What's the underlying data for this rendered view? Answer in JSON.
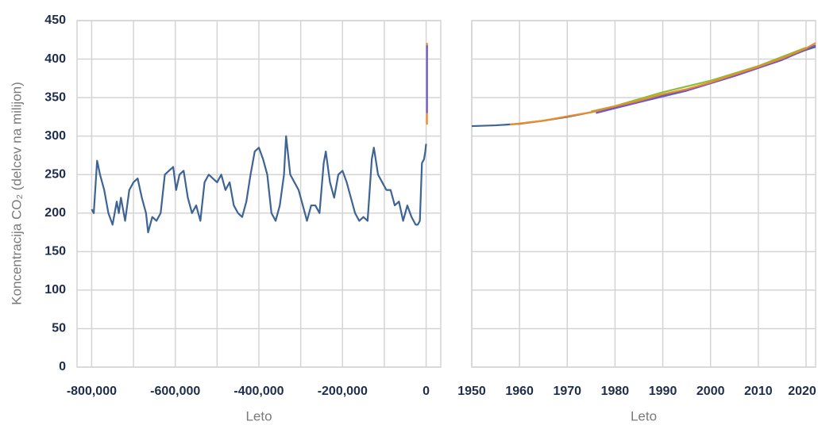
{
  "chart_data": [
    {
      "type": "line",
      "xlabel": "Leto",
      "ylabel": "Koncentracija CO₂ (delcev na milijon)",
      "xlim": [
        -835000,
        35000
      ],
      "xticks": [
        {
          "value": -800000,
          "label": "-800,000"
        },
        {
          "value": -600000,
          "label": "-600,000"
        },
        {
          "value": -400000,
          "label": "-400,000"
        },
        {
          "value": -200000,
          "label": "-200,000"
        },
        0
      ],
      "xminor_ticks": [
        -700000,
        -500000,
        -300000,
        -100000
      ],
      "ylim": [
        0,
        450
      ],
      "yticks": [
        0,
        50,
        100,
        150,
        200,
        250,
        300,
        350,
        400,
        450
      ],
      "grid": true,
      "series": [
        {
          "color": "#3d6494",
          "x": [
            -800000,
            -795000,
            -787000,
            -780000,
            -770000,
            -760000,
            -750000,
            -740000,
            -735000,
            -730000,
            -720000,
            -710000,
            -700000,
            -690000,
            -680000,
            -670000,
            -665000,
            -655000,
            -645000,
            -635000,
            -625000,
            -615000,
            -605000,
            -598000,
            -590000,
            -580000,
            -570000,
            -560000,
            -550000,
            -540000,
            -530000,
            -520000,
            -510000,
            -500000,
            -490000,
            -480000,
            -470000,
            -460000,
            -450000,
            -440000,
            -430000,
            -420000,
            -410000,
            -400000,
            -390000,
            -380000,
            -370000,
            -360000,
            -350000,
            -340000,
            -335000,
            -325000,
            -315000,
            -305000,
            -295000,
            -285000,
            -275000,
            -265000,
            -255000,
            -245000,
            -240000,
            -230000,
            -220000,
            -210000,
            -200000,
            -190000,
            -180000,
            -170000,
            -160000,
            -150000,
            -140000,
            -130000,
            -125000,
            -115000,
            -105000,
            -95000,
            -85000,
            -75000,
            -65000,
            -55000,
            -45000,
            -35000,
            -25000,
            -20000,
            -15000,
            -10000,
            -5000,
            -2000,
            0
          ],
          "values": [
            205,
            200,
            268,
            250,
            230,
            200,
            185,
            215,
            200,
            220,
            190,
            230,
            240,
            245,
            220,
            200,
            175,
            195,
            190,
            200,
            250,
            255,
            260,
            230,
            250,
            255,
            220,
            200,
            210,
            190,
            240,
            250,
            245,
            240,
            250,
            230,
            240,
            210,
            200,
            195,
            215,
            250,
            280,
            285,
            270,
            250,
            200,
            190,
            210,
            250,
            300,
            250,
            240,
            230,
            210,
            190,
            210,
            210,
            200,
            265,
            280,
            240,
            220,
            250,
            255,
            240,
            220,
            200,
            190,
            195,
            190,
            270,
            285,
            250,
            240,
            230,
            230,
            210,
            215,
            190,
            210,
            195,
            185,
            185,
            190,
            265,
            270,
            280,
            290
          ]
        },
        {
          "color": "#f08a24",
          "x": [
            1958,
            2022
          ],
          "values": [
            315,
            421
          ]
        },
        {
          "color": "#6a5acd",
          "x": [
            1976,
            2022
          ],
          "values": [
            330,
            418
          ]
        }
      ]
    },
    {
      "type": "line",
      "xlabel": "Leto",
      "xlim": [
        1950,
        2022
      ],
      "xticks": [
        1950,
        1960,
        1970,
        1980,
        1990,
        2000,
        2010,
        2020
      ],
      "ylim": [
        0,
        450
      ],
      "yticks": [
        0,
        50,
        100,
        150,
        200,
        250,
        300,
        350,
        400,
        450
      ],
      "ytick_labels": false,
      "grid": true,
      "series": [
        {
          "color": "#8bbd3a",
          "x": [
            1975,
            1980,
            1990,
            2000,
            2010,
            2020
          ],
          "values": [
            332,
            339,
            357,
            372,
            391,
            415
          ]
        },
        {
          "color": "#3d6494",
          "x": [
            1950,
            1955,
            1960,
            1965,
            1970,
            1975,
            1980,
            1985,
            1990,
            1995,
            2000,
            2005,
            2010,
            2015,
            2020,
            2022
          ],
          "values": [
            313,
            314,
            316,
            320,
            325,
            331,
            338,
            345,
            353,
            360,
            369,
            379,
            389,
            400,
            412,
            416
          ]
        },
        {
          "color": "#6a5acd",
          "x": [
            1976,
            1985,
            1995,
            2005,
            2015,
            2022
          ],
          "values": [
            330,
            344,
            359,
            378,
            399,
            418
          ]
        },
        {
          "color": "#f08a24",
          "x": [
            1958,
            1965,
            1970,
            1975,
            1980,
            1985,
            1990,
            1995,
            2000,
            2005,
            2010,
            2015,
            2020,
            2022
          ],
          "values": [
            315,
            320,
            325.7,
            331,
            338.7,
            346,
            354.4,
            361,
            369.7,
            380,
            390,
            401,
            414,
            421
          ]
        }
      ]
    }
  ]
}
